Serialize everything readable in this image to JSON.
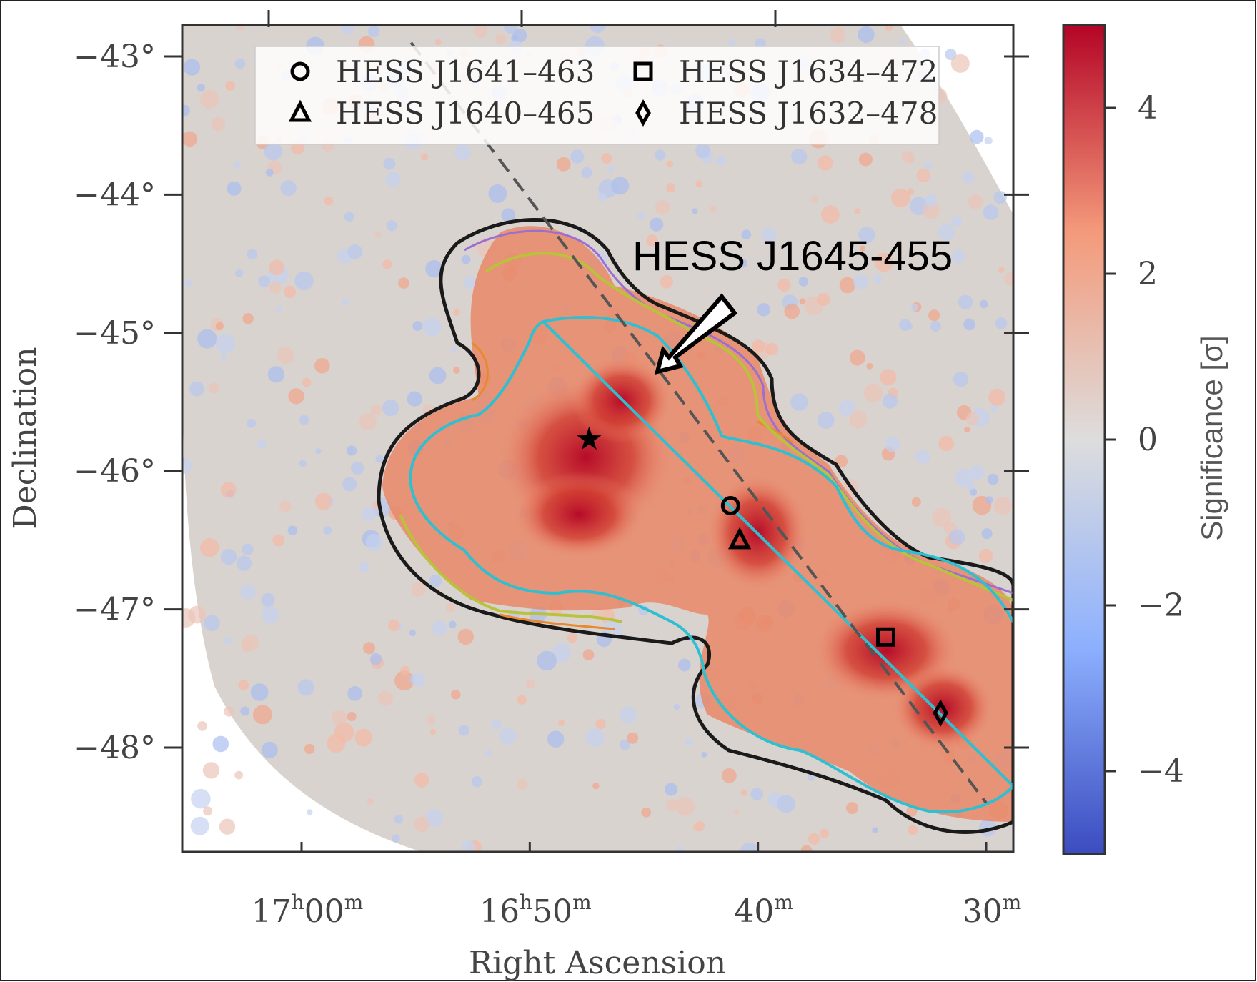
{
  "chart_data": {
    "type": "heatmap",
    "xlabel": "Right Ascension",
    "ylabel": "Declination",
    "colorbar_label": "Significance [σ]",
    "colorbar_range": [
      -5,
      5
    ],
    "colorbar_ticks": [
      "4",
      "2",
      "0",
      "−2",
      "−4"
    ],
    "colorbar_tick_values": [
      4,
      2,
      0,
      -2,
      -4
    ],
    "colormap": [
      "#3b4cc0",
      "#8db0fe",
      "#dddddd",
      "#f49a7b",
      "#b40426"
    ],
    "x_ticks": [
      {
        "h": "17",
        "m": "00",
        "hsup": "h",
        "msup": "m",
        "value": 255.0
      },
      {
        "h": "16",
        "m": "50",
        "hsup": "h",
        "msup": "m",
        "value": 252.5
      },
      {
        "h": "",
        "m": "40",
        "hsup": "",
        "msup": "m",
        "value": 250.0
      },
      {
        "h": "",
        "m": "30",
        "hsup": "",
        "msup": "m",
        "value": 247.5
      }
    ],
    "y_ticks": [
      {
        "label": "−43°",
        "value": -43
      },
      {
        "label": "−44°",
        "value": -44
      },
      {
        "label": "−45°",
        "value": -45
      },
      {
        "label": "−46°",
        "value": -46
      },
      {
        "label": "−47°",
        "value": -47
      },
      {
        "label": "−48°",
        "value": -48
      }
    ],
    "annotation": {
      "text": "HESS J1645-455",
      "ra": 250.8,
      "dec": -45.25
    },
    "center_marker": {
      "symbol": "star",
      "ra": 251.85,
      "dec": -45.77
    },
    "galactic_plane": [
      {
        "ra": 253.8,
        "dec": -42.9
      },
      {
        "ra": 247.5,
        "dec": -48.4
      }
    ],
    "sources": [
      {
        "name": "HESS J1641–463",
        "symbol": "circle",
        "ra": 250.3,
        "dec": -46.25
      },
      {
        "name": "HESS J1640–465",
        "symbol": "triangle",
        "ra": 250.2,
        "dec": -46.5
      },
      {
        "name": "HESS J1634–472",
        "symbol": "square",
        "ra": 248.6,
        "dec": -47.2
      },
      {
        "name": "HESS J1632–478",
        "symbol": "diamond",
        "ra": 248.0,
        "dec": -47.75
      }
    ],
    "legend_location": "top-center",
    "colors": {
      "contour_outer": "#1a1a1a",
      "contour_purple": "#9b6fd0",
      "contour_orange": "#e88a2b",
      "contour_yellow": "#b9c23a",
      "contour_cyan": "#2fbfd0",
      "galactic_plane": "#555555"
    }
  }
}
